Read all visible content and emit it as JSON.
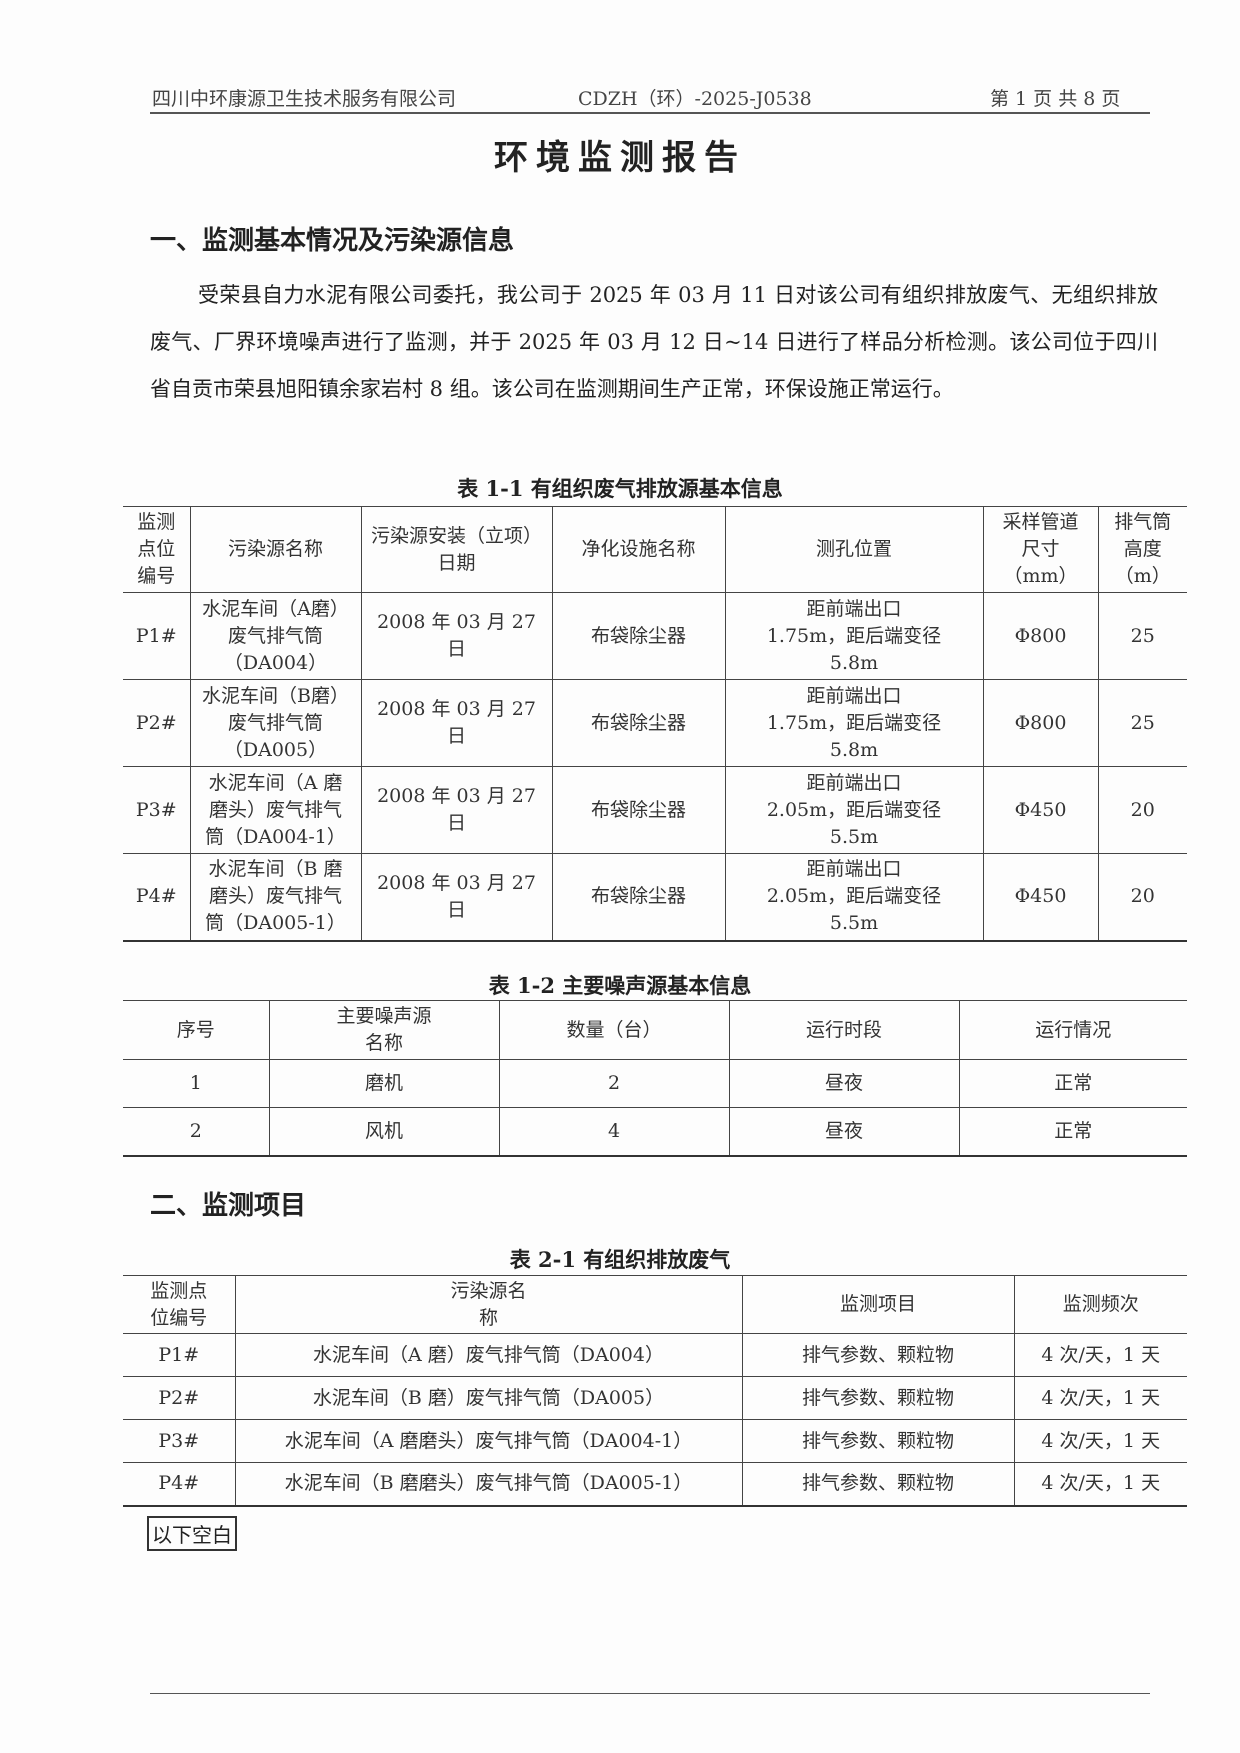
{
  "header": {
    "company": "四川中环康源卫生技术服务有限公司",
    "report_no": "CDZH（环）-2025-J0538",
    "page": "第 1 页 共 8 页"
  },
  "title": "环境监测报告",
  "section1": {
    "heading": "一、监测基本情况及污染源信息",
    "paragraph": "受荣县自力水泥有限公司委托，我公司于 2025 年 03 月 11 日对该公司有组织排放废气、无组织排放废气、厂界环境噪声进行了监测，并于 2025 年 03 月 12 日~14 日进行了样品分析检测。该公司位于四川省自贡市荣县旭阳镇余家岩村 8 组。该公司在监测期间生产正常，环保设施正常运行。"
  },
  "table1": {
    "caption": "表 1-1  有组织废气排放源基本信息",
    "headers": [
      "监测点位编号",
      "污染源名称",
      "污染源安装（立项）日期",
      "净化设施名称",
      "测孔位置",
      "采样管道尺寸（mm）",
      "排气筒高度（m）"
    ],
    "rows": [
      [
        "P1#",
        "水泥车间（A磨）废气排气筒（DA004）",
        "2008 年 03 月 27 日",
        "布袋除尘器",
        "距前端出口 1.75m，距后端变径 5.8m",
        "Φ800",
        "25"
      ],
      [
        "P2#",
        "水泥车间（B磨）废气排气筒（DA005）",
        "2008 年 03 月 27 日",
        "布袋除尘器",
        "距前端出口 1.75m，距后端变径 5.8m",
        "Φ800",
        "25"
      ],
      [
        "P3#",
        "水泥车间（A 磨磨头）废气排气筒（DA004-1）",
        "2008 年 03 月 27 日",
        "布袋除尘器",
        "距前端出口 2.05m，距后端变径 5.5m",
        "Φ450",
        "20"
      ],
      [
        "P4#",
        "水泥车间（B 磨磨头）废气排气筒（DA005-1）",
        "2008 年 03 月 27 日",
        "布袋除尘器",
        "距前端出口 2.05m，距后端变径 5.5m",
        "Φ450",
        "20"
      ]
    ]
  },
  "table2": {
    "caption": "表 1-2  主要噪声源基本信息",
    "headers": [
      "序号",
      "主要噪声源名称",
      "数量（台）",
      "运行时段",
      "运行情况"
    ],
    "rows": [
      [
        "1",
        "磨机",
        "2",
        "昼夜",
        "正常"
      ],
      [
        "2",
        "风机",
        "4",
        "昼夜",
        "正常"
      ]
    ]
  },
  "section2": {
    "heading": "二、监测项目"
  },
  "table3": {
    "caption": "表 2-1  有组织排放废气",
    "headers": [
      "监测点位编号",
      "污染源名称",
      "监测项目",
      "监测频次"
    ],
    "rows": [
      [
        "P1#",
        "水泥车间（A 磨）废气排气筒（DA004）",
        "排气参数、颗粒物",
        "4 次/天，1 天"
      ],
      [
        "P2#",
        "水泥车间（B 磨）废气排气筒（DA005）",
        "排气参数、颗粒物",
        "4 次/天，1 天"
      ],
      [
        "P3#",
        "水泥车间（A 磨磨头）废气排气筒（DA004-1）",
        "排气参数、颗粒物",
        "4 次/天，1 天"
      ],
      [
        "P4#",
        "水泥车间（B 磨磨头）废气排气筒（DA005-1）",
        "排气参数、颗粒物",
        "4 次/天，1 天"
      ]
    ]
  },
  "blank_note": "以下空白"
}
